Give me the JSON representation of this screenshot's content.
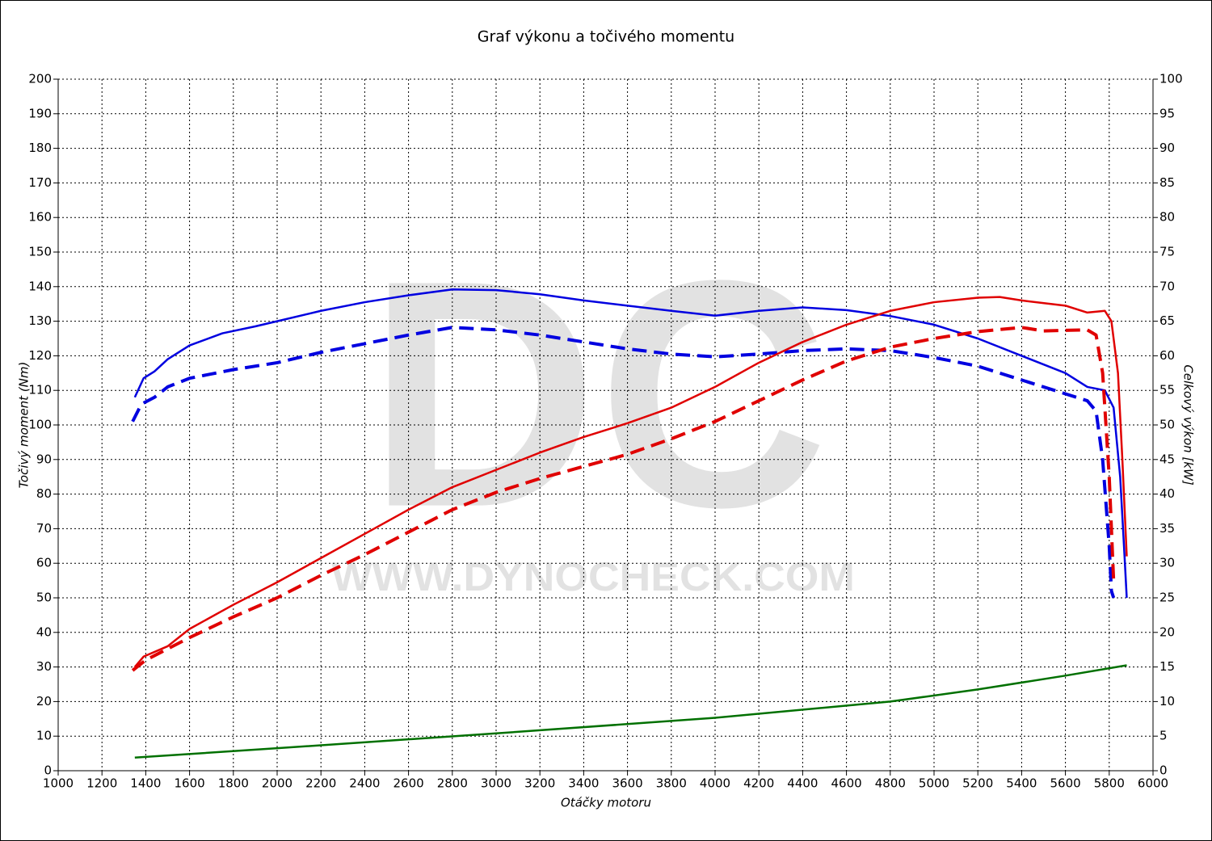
{
  "chart_data": {
    "type": "line",
    "title": "Graf výkonu a točivého momentu",
    "x_label": "Otáčky motoru",
    "y_label": "Točivý moment (Nm)",
    "y2_label": "Celkový výkon [kW]",
    "watermark": [
      "DC",
      "WWW.DYNOCHECK.COM"
    ],
    "xlim": [
      1000,
      6000
    ],
    "xticks": [
      1000,
      1200,
      1400,
      1600,
      1800,
      2000,
      2200,
      2400,
      2600,
      2800,
      3000,
      3200,
      3400,
      3600,
      3800,
      4000,
      4200,
      4400,
      4600,
      4800,
      5000,
      5200,
      5400,
      5600,
      5800,
      6000
    ],
    "ylim": [
      0,
      200
    ],
    "yticks": [
      0,
      10,
      20,
      30,
      40,
      50,
      60,
      70,
      80,
      90,
      100,
      110,
      120,
      130,
      140,
      150,
      160,
      170,
      180,
      190,
      200
    ],
    "y2lim": [
      0,
      100
    ],
    "y2ticks": [
      0,
      5,
      10,
      15,
      20,
      25,
      30,
      35,
      40,
      45,
      50,
      55,
      60,
      65,
      70,
      75,
      80,
      85,
      90,
      95,
      100
    ],
    "grid": true,
    "series": [
      {
        "color": "#0000e0",
        "dashed": false,
        "x": [
          1350,
          1390,
          1440,
          1500,
          1600,
          1750,
          1900,
          2000,
          2200,
          2400,
          2600,
          2800,
          3000,
          3200,
          3400,
          3600,
          3800,
          4000,
          4200,
          4400,
          4600,
          4800,
          5000,
          5200,
          5400,
          5600,
          5700,
          5780,
          5820,
          5850,
          5870,
          5880
        ],
        "values": [
          108,
          113.5,
          115.5,
          119,
          123,
          126.5,
          128.5,
          130,
          133,
          135.5,
          137.5,
          139.2,
          139,
          137.8,
          136,
          134.5,
          133,
          131.6,
          133,
          134,
          133.2,
          131.5,
          129,
          125,
          120,
          115,
          111,
          110,
          105,
          85,
          62,
          50
        ]
      },
      {
        "color": "#0000e0",
        "dashed": true,
        "x": [
          1340,
          1380,
          1440,
          1500,
          1600,
          1800,
          2000,
          2200,
          2400,
          2600,
          2800,
          3000,
          3200,
          3400,
          3600,
          3800,
          4000,
          4200,
          4400,
          4600,
          4800,
          5000,
          5200,
          5400,
          5600,
          5700,
          5740,
          5770,
          5800,
          5810,
          5820
        ],
        "values": [
          101,
          106,
          108,
          111,
          113.5,
          116,
          118,
          121,
          123.5,
          126,
          128.2,
          127.5,
          126,
          124,
          122,
          120.5,
          119.7,
          120.5,
          121.5,
          122,
          121.5,
          119.5,
          117,
          113,
          109,
          107,
          104,
          90,
          65,
          52,
          50
        ]
      },
      {
        "color": "#e00000",
        "dashed": false,
        "axis": "y2",
        "x": [
          1350,
          1390,
          1500,
          1600,
          1800,
          2000,
          2200,
          2400,
          2600,
          2800,
          3000,
          3200,
          3400,
          3600,
          3800,
          4000,
          4200,
          4400,
          4600,
          4800,
          5000,
          5200,
          5300,
          5400,
          5600,
          5700,
          5780,
          5810,
          5840,
          5860,
          5880
        ],
        "values": [
          15,
          16.5,
          18,
          20.5,
          24,
          27.25,
          30.75,
          34.25,
          37.75,
          41,
          43.5,
          46,
          48.25,
          50.25,
          52.5,
          55.5,
          59,
          62,
          64.5,
          66.5,
          67.75,
          68.4,
          68.5,
          68,
          67.25,
          66.25,
          66.5,
          65,
          57.5,
          45,
          31
        ]
      },
      {
        "color": "#e00000",
        "dashed": true,
        "axis": "y2",
        "x": [
          1340,
          1400,
          1600,
          1800,
          2000,
          2200,
          2400,
          2600,
          2800,
          3000,
          3200,
          3400,
          3600,
          3800,
          4000,
          4200,
          4400,
          4600,
          4800,
          5000,
          5200,
          5400,
          5500,
          5700,
          5740,
          5770,
          5800,
          5820
        ],
        "values": [
          14.5,
          16,
          19.25,
          22.25,
          25,
          28.25,
          31.25,
          34.5,
          37.75,
          40.25,
          42.25,
          44,
          45.75,
          48,
          50.5,
          53.5,
          56.5,
          59.25,
          61.25,
          62.5,
          63.5,
          64.1,
          63.6,
          63.75,
          63,
          57.5,
          42.5,
          27.5
        ]
      },
      {
        "color": "#007000",
        "dashed": false,
        "x": [
          1350,
          2000,
          3000,
          4000,
          4800,
          5200,
          5600,
          5880
        ],
        "values": [
          3.8,
          6.5,
          10.8,
          15.3,
          20,
          23.5,
          27.5,
          30.5
        ]
      }
    ]
  }
}
